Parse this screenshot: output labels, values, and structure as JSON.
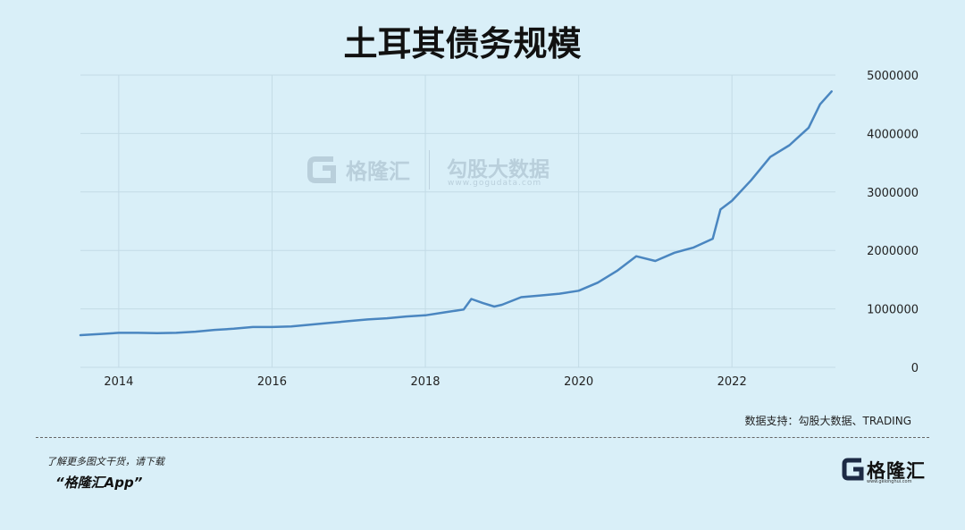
{
  "title": "土耳其债务规模",
  "source": "数据支持：勾股大数据、TRADING",
  "promo": {
    "line1": "了解更多图文干货，请下载",
    "line2": "“格隆汇App”"
  },
  "brand": {
    "name": "格隆汇",
    "url": "www.gelonghui.com"
  },
  "watermark": {
    "name": "格隆汇",
    "subtitle": "勾股大数据",
    "url": "www.gogudata.com"
  },
  "colors": {
    "background": "#d9eff8",
    "line": "#4a86c0",
    "grid": "#c3dbe6"
  },
  "chart_data": {
    "type": "line",
    "title": "土耳其债务规模",
    "xlabel": "",
    "ylabel": "",
    "xlim": [
      2013.5,
      2023.35
    ],
    "ylim": [
      0,
      5000000
    ],
    "x_ticks": [
      2014,
      2016,
      2018,
      2020,
      2022
    ],
    "y_ticks": [
      0,
      1000000,
      2000000,
      3000000,
      4000000,
      5000000
    ],
    "y_tick_labels": [
      "0",
      "1000000",
      "2000000",
      "3000000",
      "4000000",
      "5000000"
    ],
    "grid": true,
    "series": [
      {
        "x": [
          2013.5,
          2013.75,
          2014.0,
          2014.25,
          2014.5,
          2014.75,
          2015.0,
          2015.25,
          2015.5,
          2015.75,
          2016.0,
          2016.25,
          2016.5,
          2016.75,
          2017.0,
          2017.25,
          2017.5,
          2017.75,
          2018.0,
          2018.25,
          2018.5,
          2018.6,
          2018.75,
          2018.9,
          2019.0,
          2019.25,
          2019.5,
          2019.75,
          2020.0,
          2020.25,
          2020.5,
          2020.75,
          2021.0,
          2021.25,
          2021.5,
          2021.75,
          2021.85,
          2022.0,
          2022.25,
          2022.5,
          2022.75,
          2023.0,
          2023.15,
          2023.3
        ],
        "y": [
          550000,
          570000,
          590000,
          590000,
          585000,
          590000,
          610000,
          640000,
          660000,
          690000,
          690000,
          700000,
          730000,
          760000,
          790000,
          820000,
          840000,
          870000,
          890000,
          940000,
          990000,
          1170000,
          1100000,
          1040000,
          1070000,
          1200000,
          1230000,
          1260000,
          1310000,
          1450000,
          1650000,
          1900000,
          1820000,
          1960000,
          2050000,
          2200000,
          2700000,
          2850000,
          3200000,
          3600000,
          3800000,
          4100000,
          4500000,
          4720000
        ]
      }
    ]
  }
}
